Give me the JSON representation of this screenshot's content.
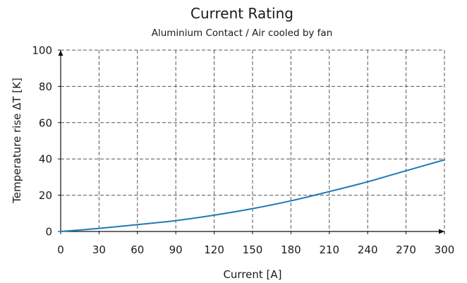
{
  "chart_data": {
    "type": "line",
    "title": "Current Rating",
    "subtitle": "Aluminium Contact / Air cooled by fan",
    "xlabel": "Current [A]",
    "ylabel": "Temperature rise ΔT [K]",
    "xlim": [
      0,
      300
    ],
    "ylim": [
      0,
      100
    ],
    "x_ticks": [
      0,
      30,
      60,
      90,
      120,
      150,
      180,
      210,
      240,
      270,
      300
    ],
    "y_ticks": [
      0,
      20,
      40,
      60,
      80,
      100
    ],
    "grid": true,
    "series": [
      {
        "color": "#1f7ab8",
        "x": [
          0,
          30,
          60,
          90,
          120,
          150,
          180,
          210,
          240,
          270,
          300
        ],
        "y": [
          0,
          1.7,
          3.8,
          6.0,
          9.0,
          12.6,
          16.9,
          22.0,
          27.4,
          33.5,
          39.5
        ]
      }
    ]
  }
}
